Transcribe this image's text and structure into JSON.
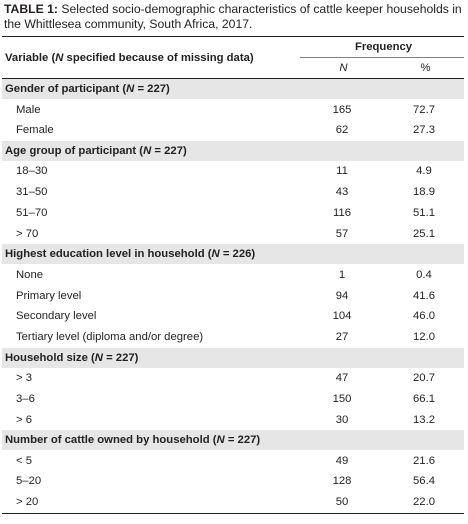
{
  "caption": {
    "label": "TABLE 1:",
    "text": " Selected socio-demographic characteristics of cattle keeper households in the Whittlesea community, South Africa, 2017."
  },
  "header": {
    "variable_pre": "Variable (",
    "variable_n": "N",
    "variable_post": " specified because of missing data)",
    "frequency": "Frequency",
    "col_n": "N",
    "col_pct": "%"
  },
  "groups": [
    {
      "pre": "Gender of participant (",
      "n": "N",
      "post": " = 227)",
      "rows": [
        {
          "label": "Male",
          "n": "165",
          "pct": "72.7"
        },
        {
          "label": "Female",
          "n": "62",
          "pct": "27.3"
        }
      ]
    },
    {
      "pre": "Age group of participant (",
      "n": "N",
      "post": " = 227)",
      "rows": [
        {
          "label": "18–30",
          "n": "11",
          "pct": "4.9"
        },
        {
          "label": "31–50",
          "n": "43",
          "pct": "18.9"
        },
        {
          "label": "51–70",
          "n": "116",
          "pct": "51.1"
        },
        {
          "label": "> 70",
          "n": "57",
          "pct": "25.1"
        }
      ]
    },
    {
      "pre": "Highest education level in household (",
      "n": "N",
      "post": " = 226)",
      "rows": [
        {
          "label": "None",
          "n": "1",
          "pct": "0.4"
        },
        {
          "label": "Primary level",
          "n": "94",
          "pct": "41.6"
        },
        {
          "label": "Secondary level",
          "n": "104",
          "pct": "46.0"
        },
        {
          "label": "Tertiary level (diploma and/or degree)",
          "n": "27",
          "pct": "12.0"
        }
      ]
    },
    {
      "pre": "Household size (",
      "n": "N",
      "post": " = 227)",
      "rows": [
        {
          "label": "> 3",
          "n": "47",
          "pct": "20.7"
        },
        {
          "label": "3–6",
          "n": "150",
          "pct": "66.1"
        },
        {
          "label": "> 6",
          "n": "30",
          "pct": "13.2"
        }
      ]
    },
    {
      "pre": "Number of cattle owned by household (",
      "n": "N",
      "post": " = 227)",
      "rows": [
        {
          "label": "< 5",
          "n": "49",
          "pct": "21.6"
        },
        {
          "label": "5–20",
          "n": "128",
          "pct": "56.4"
        },
        {
          "label": "> 20",
          "n": "50",
          "pct": "22.0"
        }
      ]
    }
  ]
}
